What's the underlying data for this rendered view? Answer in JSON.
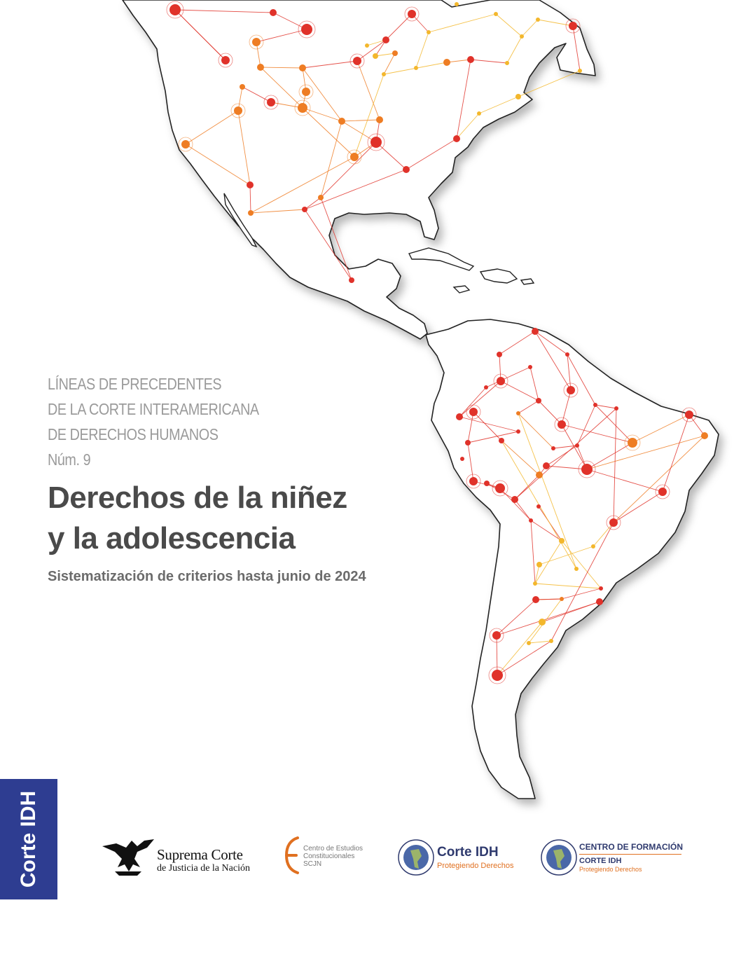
{
  "series": {
    "line1": "LÍNEAS DE PRECEDENTES",
    "line2": "DE LA CORTE INTERAMERICANA",
    "line3": "DE DERECHOS HUMANOS",
    "number": "Núm. 9"
  },
  "title": {
    "line1": "Derechos de la niñez",
    "line2": "y la adolescencia"
  },
  "subtitle": "Sistematización de criterios hasta junio de 2024",
  "side_tab": {
    "label": "Corte IDH",
    "color": "#2e3d91"
  },
  "logos": {
    "scjn": {
      "line1": "Suprema Corte",
      "line2": "de Justicia de la Nación"
    },
    "cec": {
      "line1": "Centro de Estudios",
      "line2": "Constitucionales",
      "line3": "SCJN"
    },
    "corte_idh": {
      "name": "Corte IDH",
      "tagline": "Protegiendo Derechos"
    },
    "centro_formacion": {
      "line1": "CENTRO DE FORMACIÓN",
      "line2": "CORTE IDH",
      "line3": "Protegiendo Derechos"
    }
  },
  "colors": {
    "red": "#e0322a",
    "orange": "#ee7d24",
    "yellow": "#f3b72c",
    "navy": "#2f3a6e"
  }
}
